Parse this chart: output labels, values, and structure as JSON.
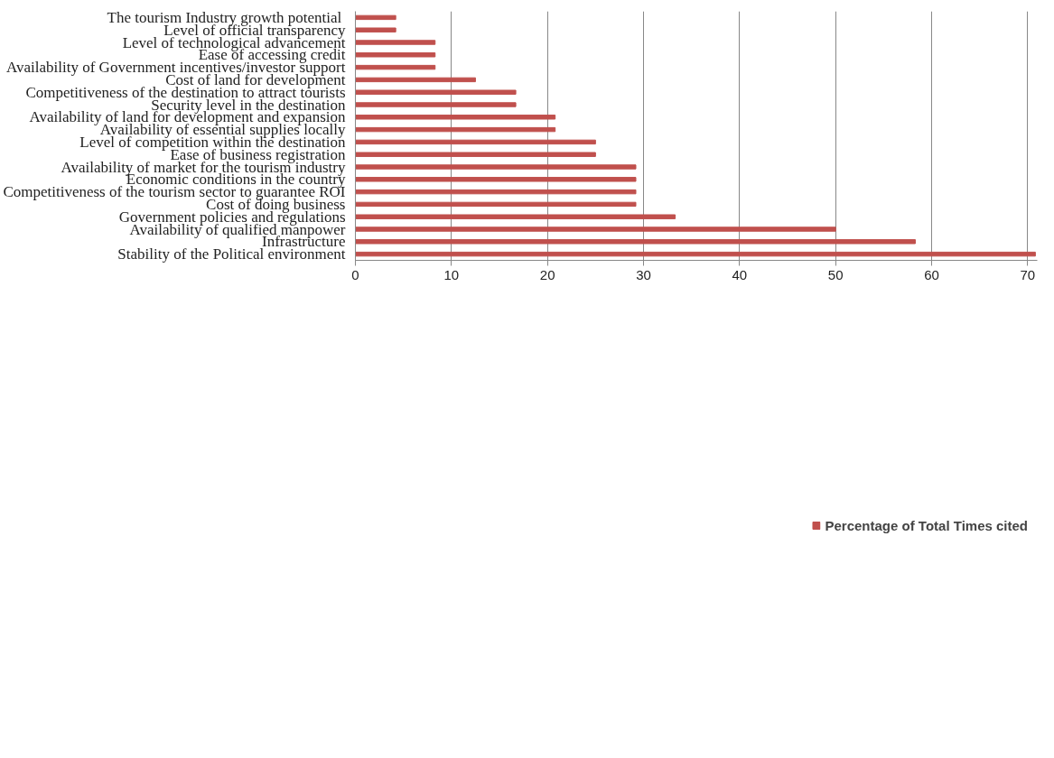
{
  "chart_data": {
    "type": "bar",
    "orientation": "horizontal",
    "categories": [
      "The tourism Industry growth  potential",
      "Level of official transparency",
      "Level of technological advancement",
      "Ease of accessing credit",
      "Availability of Government incentives/investor support",
      "Cost of land for development",
      "Competitiveness of the destination to attract tourists",
      "Security level in the destination",
      "Availability of land for development and expansion",
      "Availability of essential supplies locally",
      "Level of competition within the destination",
      "Ease of business registration",
      "Availability of market for the tourism industry",
      "Economic conditions in the country",
      "Competitiveness of the tourism sector to guarantee ROI",
      "Cost of doing business",
      "Government policies and regulations",
      "Availability of qualified manpower",
      "Infrastructure",
      "Stability of the Political environment"
    ],
    "series": [
      {
        "name": "Percentage of Total Times cited",
        "color": "#c0504d",
        "values": [
          4.2,
          4.2,
          8.3,
          8.3,
          8.3,
          12.5,
          16.7,
          16.7,
          20.8,
          20.8,
          25,
          25,
          29.2,
          29.2,
          29.2,
          29.2,
          33.3,
          50,
          58.3,
          70.8
        ]
      }
    ],
    "xlim": [
      0,
      71
    ],
    "xticks": [
      0,
      10,
      20,
      30,
      40,
      50,
      60,
      70
    ],
    "grid": "x",
    "legend": "bottom"
  }
}
